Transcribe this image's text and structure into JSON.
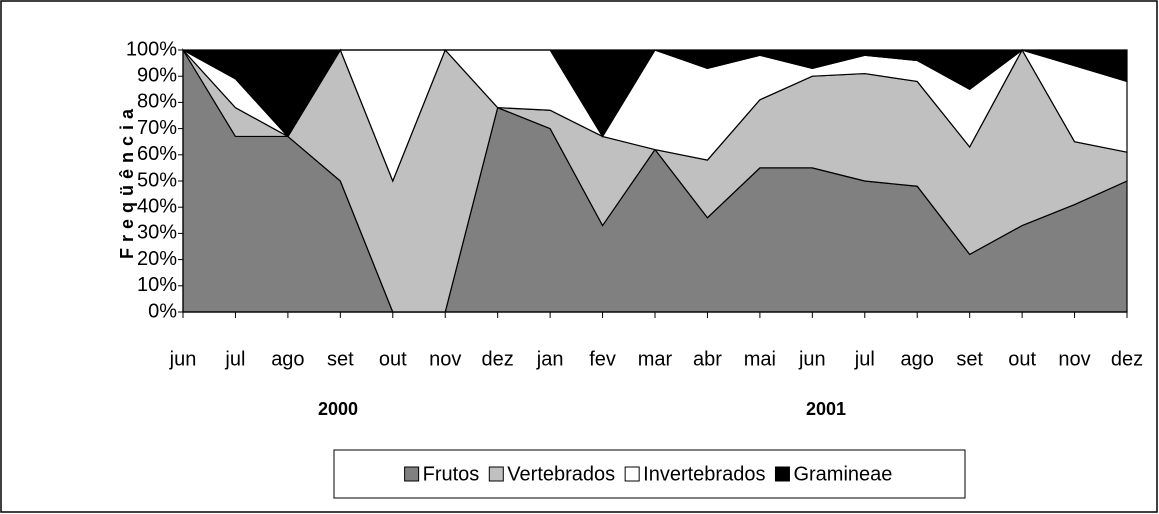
{
  "chart_data": {
    "type": "stacked_area",
    "ylabel": "Freqüência",
    "categories": [
      "jun",
      "jul",
      "ago",
      "set",
      "out",
      "nov",
      "dez",
      "jan",
      "fev",
      "mar",
      "abr",
      "mai",
      "jun",
      "jul",
      "ago",
      "set",
      "out",
      "nov",
      "dez"
    ],
    "year_labels": [
      "2000",
      "2001"
    ],
    "series": [
      {
        "name": "Frutos",
        "color": "#808080",
        "values": [
          100,
          67,
          67,
          50,
          0,
          0,
          78,
          70,
          33,
          62,
          36,
          55,
          55,
          50,
          48,
          22,
          33,
          41,
          50
        ]
      },
      {
        "name": "Vertebrados",
        "color": "#c0c0c0",
        "values": [
          0,
          11,
          0,
          50,
          50,
          100,
          0,
          7,
          34,
          0,
          22,
          26,
          35,
          41,
          40,
          41,
          67,
          24,
          11
        ]
      },
      {
        "name": "Invertebrados",
        "color": "#ffffff",
        "values": [
          0,
          11,
          0,
          0,
          50,
          0,
          22,
          23,
          0,
          38,
          35,
          17,
          3,
          7,
          8,
          22,
          0,
          29,
          27
        ]
      },
      {
        "name": "Gramineae",
        "color": "#000000",
        "values": [
          0,
          11,
          33,
          0,
          0,
          0,
          0,
          0,
          33,
          0,
          7,
          2,
          7,
          2,
          4,
          15,
          0,
          6,
          12
        ]
      }
    ],
    "ylim": [
      0,
      100
    ],
    "yticks": [
      {
        "value": 0,
        "label": "0%"
      },
      {
        "value": 10,
        "label": "10%"
      },
      {
        "value": 20,
        "label": "20%"
      },
      {
        "value": 30,
        "label": "30%"
      },
      {
        "value": 40,
        "label": "40%"
      },
      {
        "value": 50,
        "label": "50%"
      },
      {
        "value": 60,
        "label": "60%"
      },
      {
        "value": 70,
        "label": "70%"
      },
      {
        "value": 80,
        "label": "80%"
      },
      {
        "value": 90,
        "label": "90%"
      },
      {
        "value": 100,
        "label": "100%"
      }
    ],
    "legend": "bottom"
  }
}
